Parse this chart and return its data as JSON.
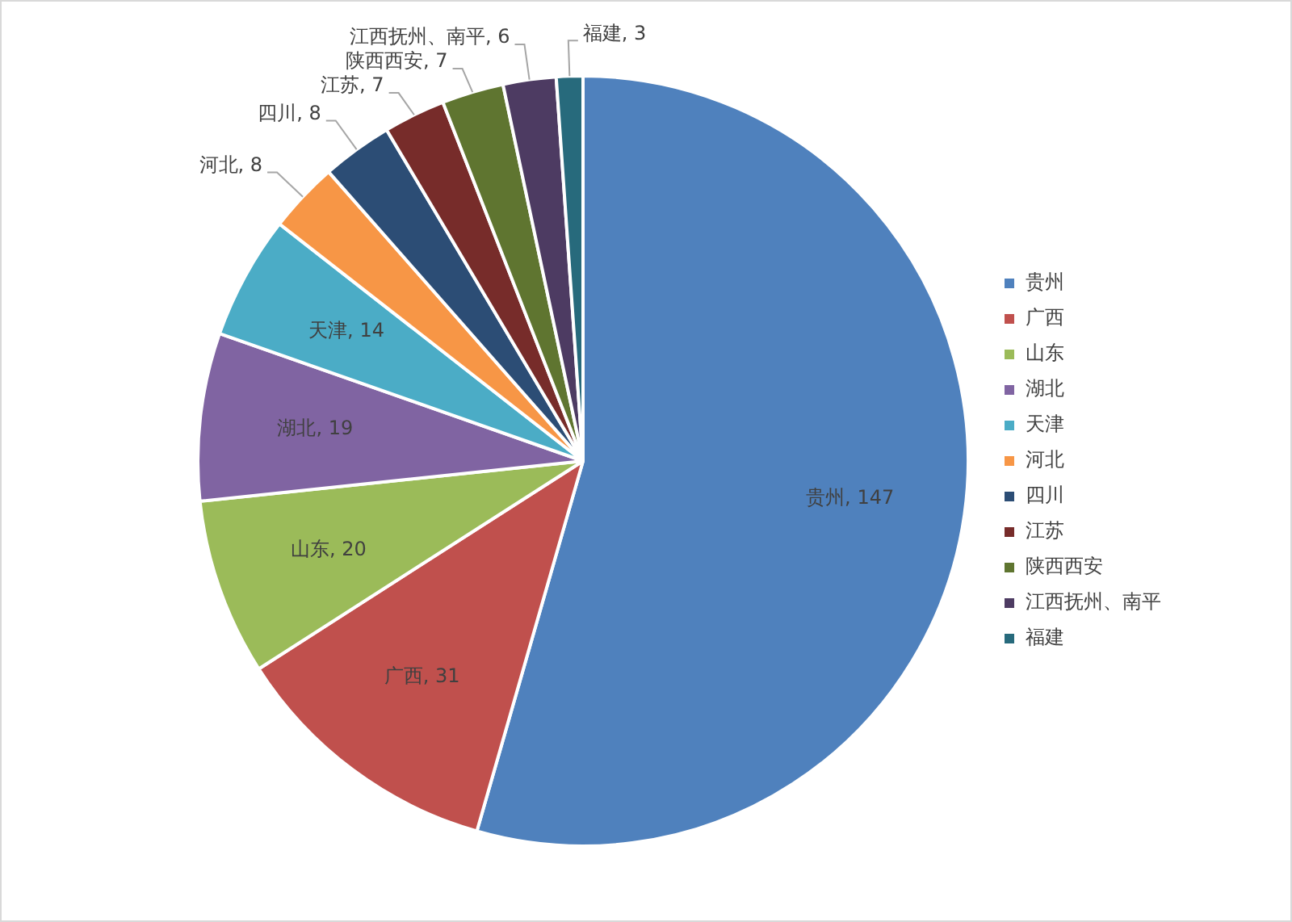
{
  "chart_data": {
    "type": "pie",
    "categories": [
      "贵州",
      "广西",
      "山东",
      "湖北",
      "天津",
      "河北",
      "四川",
      "江苏",
      "陕西西安",
      "江西抚州、南平",
      "福建"
    ],
    "values": [
      147,
      31,
      20,
      19,
      14,
      8,
      8,
      7,
      7,
      6,
      3
    ],
    "value_labels": [
      "贵州, 147",
      "广西, 31",
      "山东, 20",
      "湖北, 19",
      "天津, 14",
      "河北, 8",
      "四川, 8",
      "江苏, 7",
      "陕西西安, 7",
      "江西抚州、南平, 6",
      "福建, 3"
    ],
    "colors": [
      "#4f81bd",
      "#c0504d",
      "#9bbb59",
      "#8064a2",
      "#4bacc6",
      "#f79646",
      "#2c4d75",
      "#772c2a",
      "#5f7530",
      "#4d3b62",
      "#276a7c"
    ],
    "legend": "right"
  }
}
